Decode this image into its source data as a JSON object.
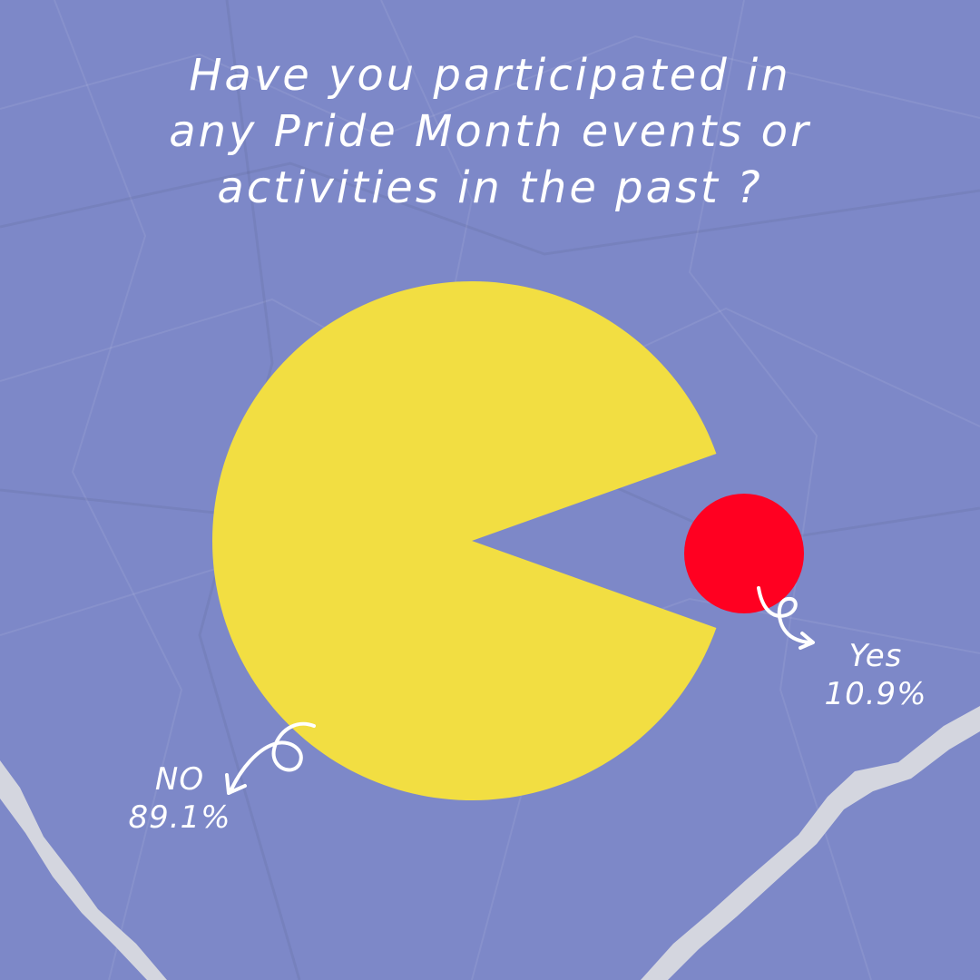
{
  "title_lines": [
    "Have you participated in",
    "any Pride Month events or",
    "activities in the past ?"
  ],
  "colors": {
    "background": "#7d88c8",
    "no": "#f2de42",
    "yes": "#ff0021",
    "text": "#ffffff",
    "tear": "#d4d6df"
  },
  "chart_data": {
    "type": "pie",
    "title": "Have you participated in any Pride Month events or activities in the past ?",
    "slices": [
      {
        "label": "NO",
        "value": 89.1,
        "value_label": "89.1%",
        "color": "#f2de42"
      },
      {
        "label": "Yes",
        "value": 10.9,
        "value_label": "10.9%",
        "color": "#ff0021",
        "exploded": true
      }
    ]
  }
}
